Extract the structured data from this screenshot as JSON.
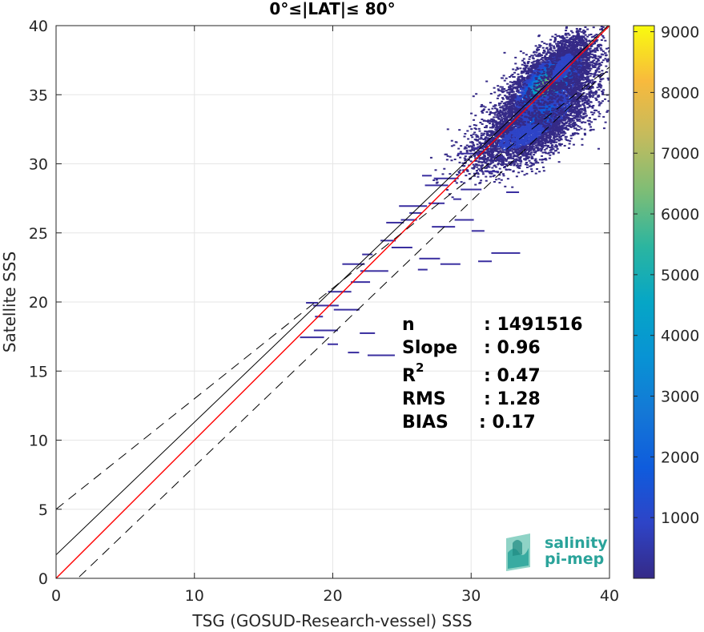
{
  "chart_data": {
    "type": "heatmap",
    "title": "0°≤|LAT|≤ 80°",
    "xlabel": "TSG (GOSUD-Research-vessel) SSS",
    "ylabel": "Satellite SSS",
    "xlim": [
      0,
      40
    ],
    "ylim": [
      0,
      40
    ],
    "xticks": [
      0,
      10,
      20,
      30,
      40
    ],
    "yticks": [
      0,
      5,
      10,
      15,
      20,
      25,
      30,
      35,
      40
    ],
    "grid": true,
    "colorbar": {
      "colormap": "parula",
      "range": [
        0,
        9100
      ],
      "ticks": [
        1000,
        2000,
        3000,
        4000,
        5000,
        6000,
        7000,
        8000,
        9000
      ]
    },
    "lines": [
      {
        "kind": "identity",
        "color": "#ff0000",
        "slope": 1.0,
        "intercept": 0
      },
      {
        "kind": "regression",
        "color": "#000000",
        "slope": 0.96,
        "intercept": 1.7
      },
      {
        "kind": "upper-bound",
        "color": "#000000",
        "dash": true,
        "slope": 0.8,
        "intercept": 5.0
      },
      {
        "kind": "lower-bound",
        "color": "#000000",
        "dash": true,
        "slope": 0.96,
        "intercept": -1.5
      }
    ],
    "density_clusters": [
      {
        "x": 35.5,
        "y": 35.8,
        "sx": 1.6,
        "sy": 2.0,
        "count": 5200,
        "peak": 7400
      },
      {
        "x": 35.0,
        "y": 33.5,
        "sx": 2.0,
        "sy": 2.2,
        "count": 2600,
        "peak": 1800
      },
      {
        "x": 33.5,
        "y": 32.0,
        "sx": 2.2,
        "sy": 1.6,
        "count": 1600,
        "peak": 900
      },
      {
        "x": 36.5,
        "y": 37.0,
        "sx": 0.8,
        "sy": 1.5,
        "count": 900,
        "peak": 1200
      }
    ],
    "sparse_points": [
      [
        26,
        26.5
      ],
      [
        27.5,
        27.2
      ],
      [
        25.5,
        26.0
      ],
      [
        24.5,
        25.8
      ],
      [
        29,
        27.5
      ],
      [
        30,
        28.2
      ],
      [
        22.5,
        23.5
      ],
      [
        23,
        22.3
      ],
      [
        24,
        24.5
      ],
      [
        25,
        24.0
      ],
      [
        21.5,
        22.8
      ],
      [
        22,
        21.5
      ],
      [
        20.5,
        20.8
      ],
      [
        19.5,
        19.8
      ],
      [
        18.5,
        20.0
      ],
      [
        19,
        19.0
      ],
      [
        21,
        19.5
      ],
      [
        22.5,
        17.8
      ],
      [
        18.5,
        17.5
      ],
      [
        20,
        17.0
      ],
      [
        21.5,
        16.4
      ],
      [
        23.5,
        16.2
      ],
      [
        19.5,
        18.0
      ],
      [
        28,
        25.5
      ],
      [
        29.5,
        26.0
      ],
      [
        31,
        23.0
      ],
      [
        32.5,
        23.6
      ],
      [
        30.5,
        25.2
      ],
      [
        27,
        23.2
      ],
      [
        28.5,
        22.8
      ],
      [
        26.5,
        22.4
      ],
      [
        33,
        28.0
      ],
      [
        31.5,
        29.5
      ],
      [
        32,
        30.5
      ],
      [
        30.5,
        31.2
      ],
      [
        29.8,
        30.8
      ],
      [
        28.2,
        29.0
      ],
      [
        27.5,
        28.5
      ],
      [
        26.8,
        29.2
      ],
      [
        25.8,
        27.0
      ]
    ],
    "stats": {
      "n_label": "n",
      "n_value": ": 1491516",
      "slope_label": "Slope",
      "slope_value": ": 0.96",
      "r2_label": "R",
      "r2_sup": "2",
      "r2_value": ": 0.47",
      "rms_label": "RMS",
      "rms_value": ": 1.28",
      "bias_label": "BIAS",
      "bias_value": ": 0.17"
    }
  },
  "logo": {
    "line1": "salinity",
    "line2": "pi-mep",
    "color": "#2aa39a"
  }
}
